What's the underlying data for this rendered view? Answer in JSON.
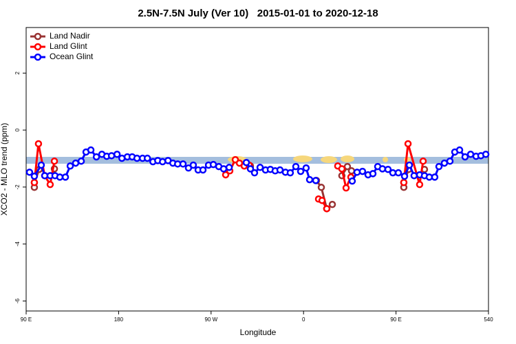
{
  "chart_data": {
    "type": "line",
    "title": "2.5N-7.5N July (Ver 10)   2015-01-01 to 2020-12-18",
    "x_label": "Longitude",
    "y_label": "XCO2 - MLO trend (ppm)",
    "xlim": [
      90,
      540
    ],
    "xticks": [
      {
        "value": 90,
        "label": "90 E"
      },
      180,
      {
        "value": 270,
        "label": "90 W"
      },
      {
        "value": 360,
        "label": "0"
      },
      {
        "value": 450,
        "label": "90 E"
      },
      540
    ],
    "ylim": [
      -6.35,
      3.6
    ],
    "yticks": [
      2,
      0,
      -2,
      -4,
      -6
    ],
    "legend": "top-left",
    "series": [
      {
        "name": "Land Nadir",
        "color": "#993333",
        "x": [
          98.0,
          98.0,
          102.7,
          null,
          117.5,
          null,
          304.3,
          308.3,
          null,
          372.6,
          377.3,
          382.6,
          388.0,
          null,
          397.3,
          402.7,
          406.7,
          null,
          457.6,
          457.6,
          462.3,
          null,
          477.7
        ],
        "values": [
          -2.01,
          -1.84,
          -1.38,
          null,
          -1.36,
          null,
          -1.19,
          -1.26,
          null,
          -1.77,
          -2.01,
          -2.76,
          -2.61,
          null,
          -1.6,
          -1.28,
          -1.43,
          null,
          -2.01,
          -1.84,
          -1.38,
          null,
          -1.38
        ]
      },
      {
        "name": "Land Glint",
        "color": "#ff0000",
        "x": [
          98.0,
          102.0,
          108.1,
          113.4,
          117.5,
          null,
          284.2,
          288.2,
          293.6,
          297.6,
          302.3,
          307.0,
          null,
          374.6,
          378.0,
          382.6,
          null,
          393.3,
          397.3,
          401.4,
          406.1,
          null,
          457.6,
          461.7,
          473.0,
          476.4
        ],
        "values": [
          -1.84,
          -0.48,
          -1.6,
          -1.91,
          -1.09,
          null,
          -1.57,
          -1.43,
          -1.04,
          -1.16,
          -1.26,
          -1.23,
          null,
          -2.42,
          -2.47,
          -2.76,
          null,
          -1.26,
          -1.36,
          -2.03,
          -1.65,
          null,
          -1.84,
          -0.48,
          -1.91,
          -1.09
        ]
      },
      {
        "name": "Ocean Glint",
        "color": "#0000ff",
        "x": [
          93.3,
          98.0,
          104.7,
          108.1,
          113.4,
          118.1,
          122.8,
          128.2,
          132.9,
          138.2,
          143.6,
          148.3,
          153.0,
          158.4,
          163.7,
          168.4,
          173.1,
          178.5,
          183.2,
          188.5,
          193.2,
          197.9,
          203.3,
          208.0,
          213.4,
          218.1,
          222.8,
          228.1,
          232.8,
          237.5,
          242.7,
          248.0,
          252.7,
          257.4,
          262.1,
          267.5,
          272.2,
          277.5,
          282.2,
          287.6,
          null,
          304.3,
          308.3,
          312.3,
          317.7,
          323.0,
          327.7,
          332.4,
          337.1,
          342.4,
          347.1,
          352.5,
          357.2,
          362.5,
          365.9,
          371.9,
          null,
          407.4,
          412.1,
          417.4,
          422.8,
          427.5,
          432.2,
          436.8,
          442.2,
          446.9,
          452.3,
          458.3,
          463.0,
          467.6,
          473.0,
          477.7,
          482.4,
          487.7,
          491.8,
          497.1,
          502.5,
          507.2,
          511.9,
          517.2,
          522.6,
          527.9,
          532.6,
          537.4
        ],
        "values": [
          -1.48,
          -1.62,
          -1.23,
          -1.6,
          -1.6,
          -1.6,
          -1.65,
          -1.65,
          -1.26,
          -1.16,
          -1.09,
          -0.77,
          -0.7,
          -0.94,
          -0.85,
          -0.92,
          -0.9,
          -0.85,
          -0.99,
          -0.94,
          -0.94,
          -0.99,
          -0.99,
          -0.99,
          -1.11,
          -1.07,
          -1.11,
          -1.07,
          -1.16,
          -1.19,
          -1.19,
          -1.33,
          -1.23,
          -1.4,
          -1.4,
          -1.23,
          -1.21,
          -1.28,
          -1.36,
          -1.31,
          null,
          -1.14,
          -1.36,
          -1.5,
          -1.31,
          -1.4,
          -1.38,
          -1.43,
          -1.4,
          -1.48,
          -1.5,
          -1.28,
          -1.45,
          -1.33,
          -1.74,
          -1.77,
          null,
          -1.79,
          -1.48,
          -1.45,
          -1.57,
          -1.53,
          -1.28,
          -1.36,
          -1.38,
          -1.5,
          -1.5,
          -1.62,
          -1.23,
          -1.6,
          -1.57,
          -1.6,
          -1.65,
          -1.65,
          -1.28,
          -1.16,
          -1.09,
          -0.77,
          -0.7,
          -0.94,
          -0.85,
          -0.92,
          -0.9,
          -0.85
        ]
      }
    ]
  }
}
